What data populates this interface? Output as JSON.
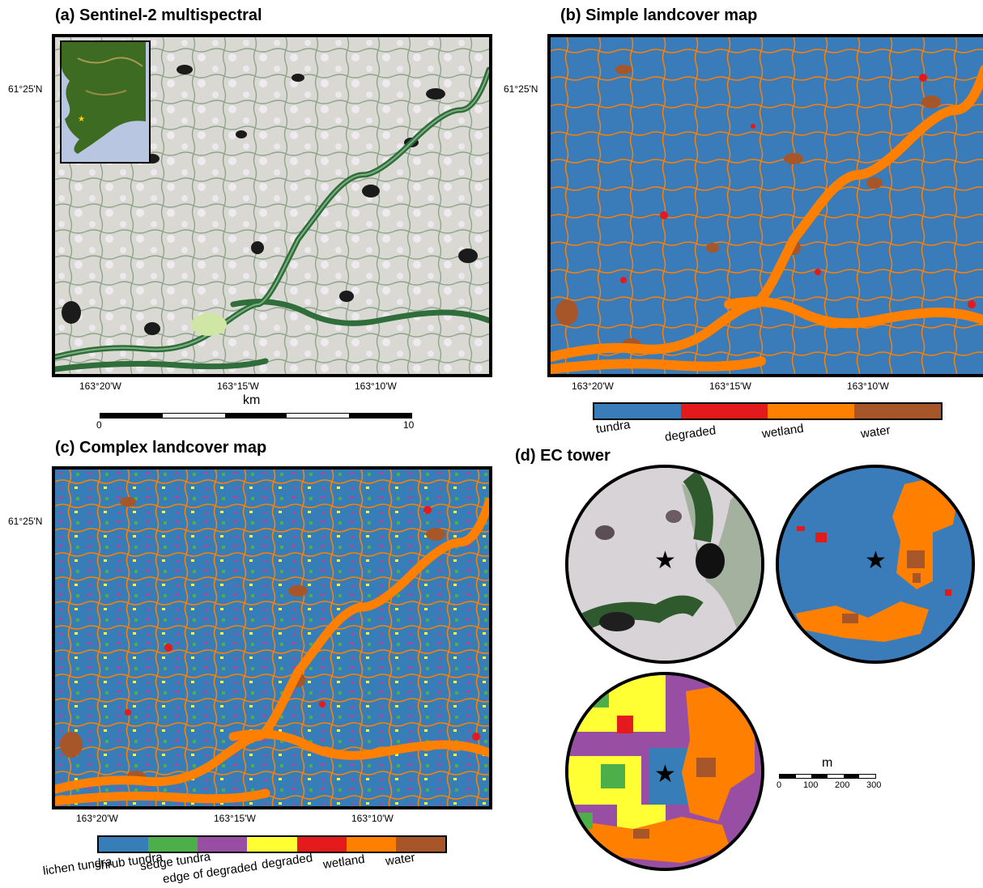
{
  "panels": {
    "a": {
      "title": "(a) Sentinel-2 multispectral"
    },
    "b": {
      "title": "(b) Simple landcover map"
    },
    "c": {
      "title": "(c) Complex landcover map"
    },
    "d": {
      "title": "(d) EC tower"
    }
  },
  "latitude_label": "61°25'N",
  "longitude_labels": [
    "163°20'W",
    "163°15'W",
    "163°10'W"
  ],
  "scalebar_km": {
    "unit": "km",
    "min_label": "0",
    "max_label": "10"
  },
  "scalebar_m": {
    "unit": "m",
    "labels": [
      "0",
      "100",
      "200",
      "300"
    ]
  },
  "simple_legend": [
    {
      "label": "tundra",
      "color": "#3a7bba"
    },
    {
      "label": "degraded",
      "color": "#e31a1c"
    },
    {
      "label": "wetland",
      "color": "#ff7f00"
    },
    {
      "label": "water",
      "color": "#a65628"
    }
  ],
  "complex_legend": [
    {
      "label": "lichen tundra",
      "color": "#377eb8"
    },
    {
      "label": "shrub tundra",
      "color": "#4daf4a"
    },
    {
      "label": "sedge tundra",
      "color": "#984ea3"
    },
    {
      "label": "edge of degraded",
      "color": "#ffff33"
    },
    {
      "label": "degraded",
      "color": "#e41a1c"
    },
    {
      "label": "wetland",
      "color": "#ff7f00"
    },
    {
      "label": "water",
      "color": "#a65628"
    }
  ],
  "tower_marker": "star-icon"
}
